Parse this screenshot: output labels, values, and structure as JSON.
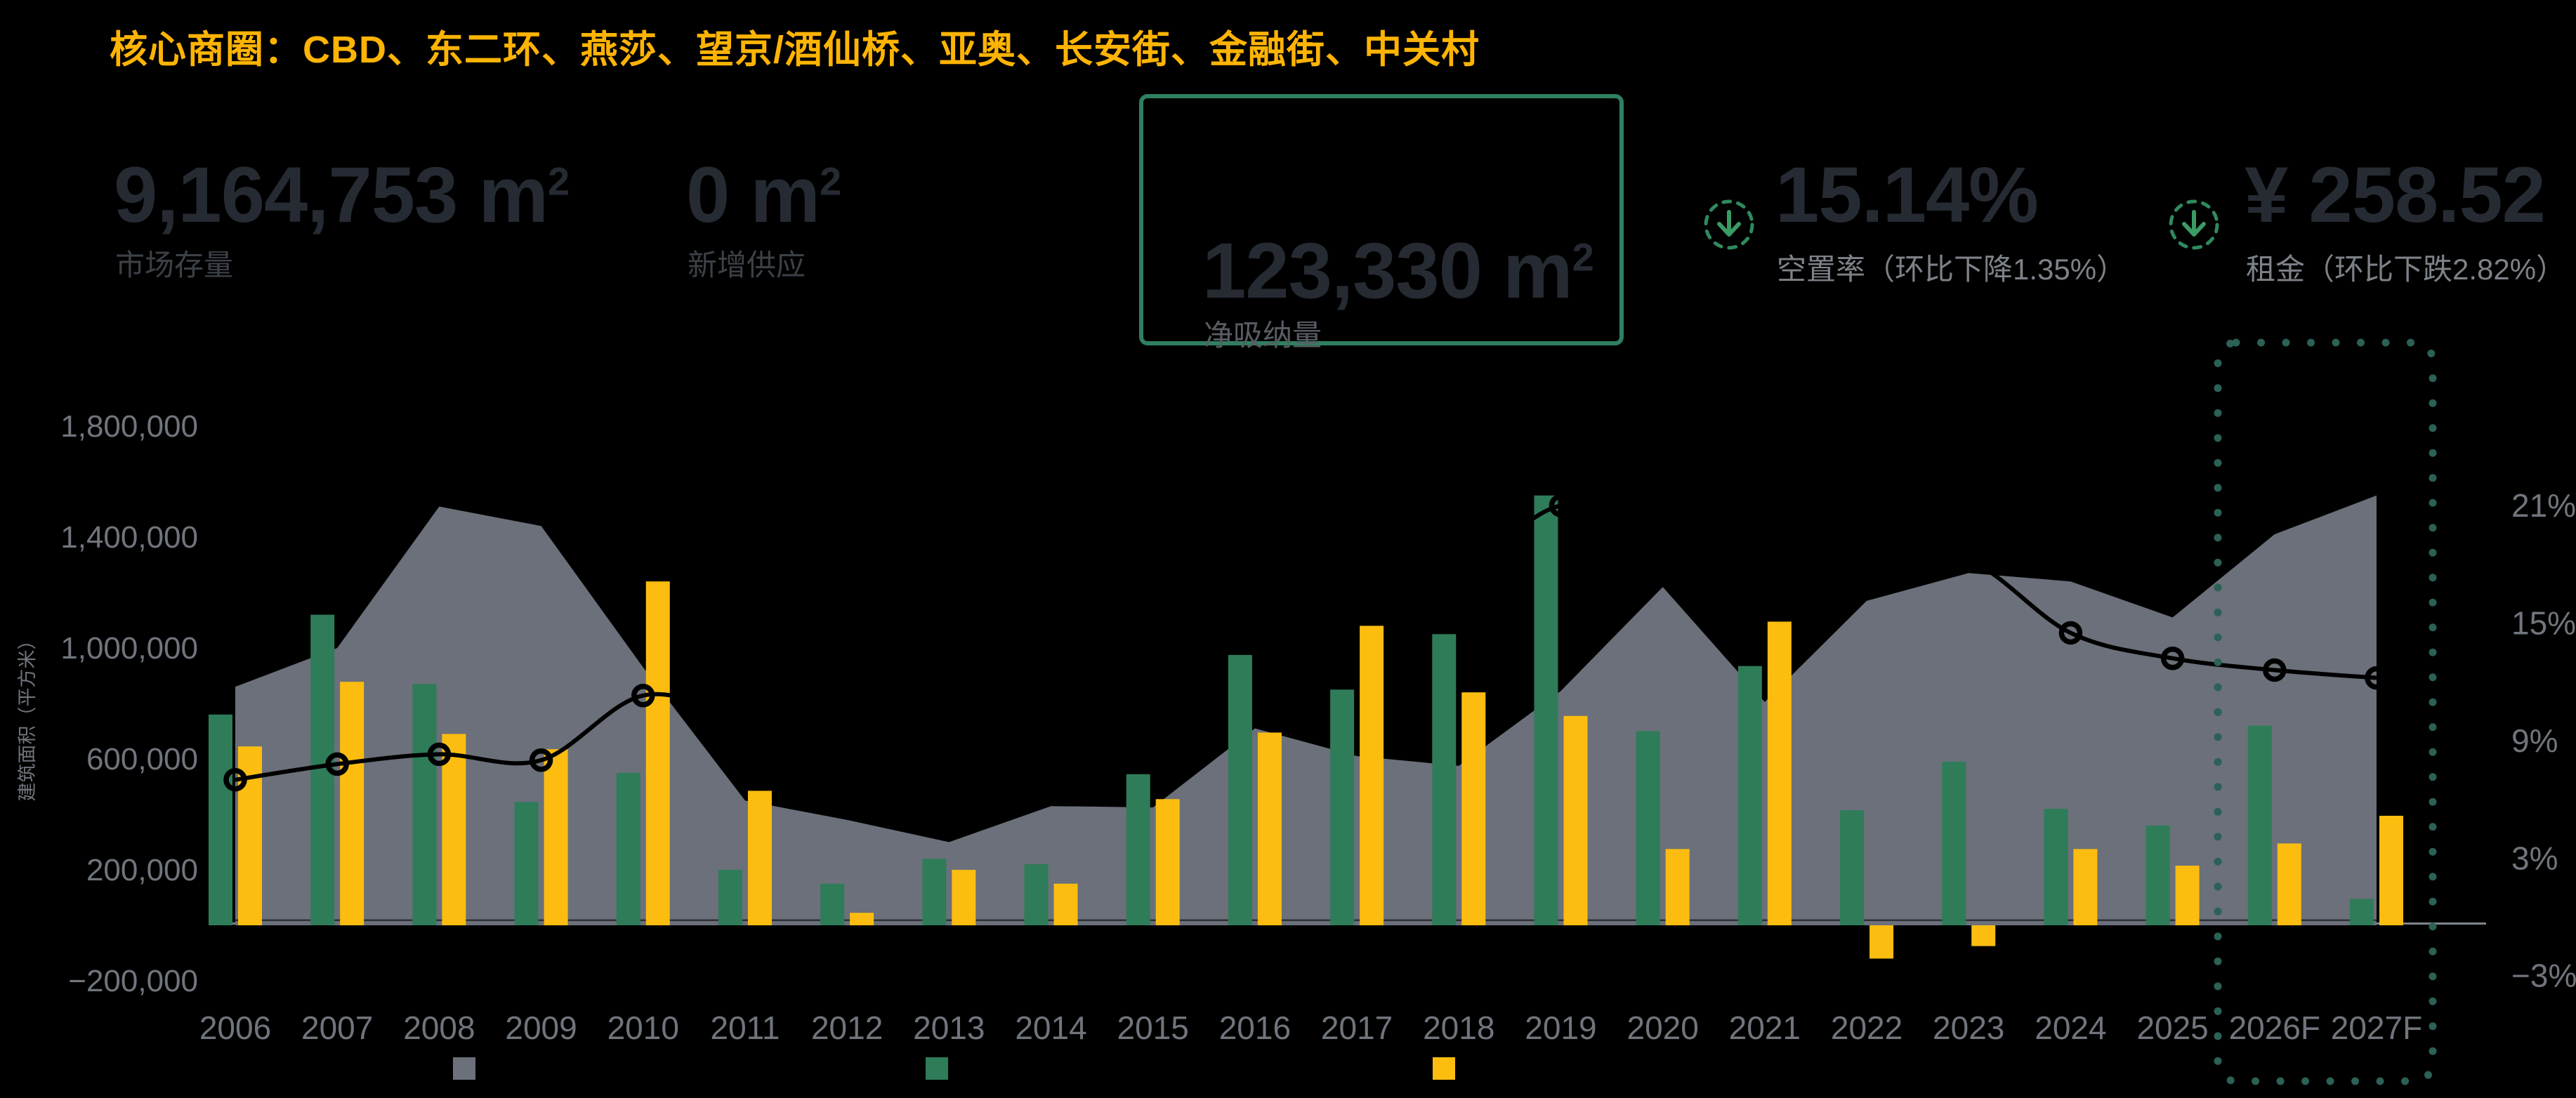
{
  "title": "核心商圈：CBD、东二环、燕莎、望京/酒仙桥、亚奥、长安街、金融街、中关村",
  "kpis": [
    {
      "value": "9,164,753",
      "unit_base": "m",
      "unit_sup": "2",
      "label": "市场存量"
    },
    {
      "value": "0",
      "unit_base": "m",
      "unit_sup": "2",
      "label": "新增供应"
    },
    {
      "value": "123,330",
      "unit_base": "m",
      "unit_sup": "2",
      "label": "净吸纳量",
      "highlighted": true
    },
    {
      "value": "15.14%",
      "label": "空置率（环比下降1.35%）",
      "trend_icon": "arrow-down-circle"
    },
    {
      "value": "¥ 258.52",
      "label": "租金（环比下跌2.82%）",
      "trend_icon": "arrow-down-circle"
    }
  ],
  "chart_data": {
    "type": "combo",
    "categories": [
      "2006",
      "2007",
      "2008",
      "2009",
      "2010",
      "2011",
      "2012",
      "2013",
      "2014",
      "2015",
      "2016",
      "2017",
      "2018",
      "2019",
      "2020",
      "2021",
      "2022",
      "2023",
      "2024",
      "2025",
      "2026F",
      "2027F"
    ],
    "series": [
      {
        "name": "gray-area",
        "type": "area",
        "axis": "left",
        "color": "#6b707a",
        "values": [
          860000,
          1000000,
          1510000,
          1440000,
          930000,
          450000,
          380000,
          300000,
          430000,
          425000,
          710000,
          610000,
          575000,
          845000,
          1220000,
          805000,
          1170000,
          1270000,
          1240000,
          1110000,
          1410000,
          1550000
        ]
      },
      {
        "name": "green-bars",
        "type": "bar",
        "axis": "left",
        "color": "#2f7c59",
        "values": [
          760000,
          1120000,
          870000,
          445000,
          550000,
          200000,
          150000,
          240000,
          220000,
          545000,
          975000,
          850000,
          1050000,
          1550000,
          700000,
          935000,
          415000,
          590000,
          420000,
          360000,
          720000,
          95000
        ]
      },
      {
        "name": "yellow-bars",
        "type": "bar",
        "axis": "left",
        "color": "#fdbd10",
        "values": [
          645000,
          878000,
          690000,
          635000,
          1240000,
          485000,
          45000,
          200000,
          150000,
          455000,
          695000,
          1080000,
          840000,
          755000,
          275000,
          1095000,
          -120000,
          -75000,
          275000,
          215000,
          295000,
          395000
        ]
      },
      {
        "name": "black-line",
        "type": "line",
        "axis": "right",
        "color": "#000000",
        "values": [
          7.0,
          7.8,
          8.3,
          8.0,
          11.3,
          10.2,
          9.6,
          9.3,
          9.8,
          11.0,
          14.5,
          16.0,
          17.5,
          21.0,
          19.8,
          19.0,
          18.4,
          18.2,
          14.5,
          13.2,
          12.6,
          12.2
        ]
      }
    ],
    "left_axis": {
      "title": "建筑面积（平方米）",
      "tick_labels": [
        "1,800,000",
        "1,400,000",
        "1,000,000",
        "600,000",
        "200,000",
        "−200,000"
      ],
      "tick_values": [
        1800000,
        1400000,
        1000000,
        600000,
        200000,
        -200000
      ],
      "range": [
        -200000,
        1800000
      ]
    },
    "right_axis": {
      "tick_labels": [
        "21%",
        "15%",
        "9%",
        "3%",
        "−3%"
      ],
      "tick_values": [
        21,
        15,
        9,
        3,
        -3
      ],
      "range": [
        -3,
        21
      ]
    },
    "x_axis": {
      "labels": [
        "2006",
        "2007",
        "2008",
        "2009",
        "2010",
        "2011",
        "2012",
        "2013",
        "2014",
        "2015",
        "2016",
        "2017",
        "2018",
        "2019",
        "2020",
        "2021",
        "2022",
        "2023",
        "2024",
        "2025",
        "2026F",
        "2027F"
      ]
    },
    "legend": [
      {
        "name": "gray-area-swatch",
        "color": "#6b707a",
        "label": ""
      },
      {
        "name": "green-bar-swatch",
        "color": "#2f7c59",
        "label": ""
      },
      {
        "name": "yellow-bar-swatch",
        "color": "#fdbd10",
        "label": ""
      }
    ],
    "forecast_highlight": {
      "categories": [
        "2026F",
        "2027F"
      ],
      "style": "dotted-box",
      "color": "#2b6156"
    },
    "grid": false,
    "legend_position": "bottom"
  },
  "colors": {
    "background": "#000000",
    "title": "#ffb404",
    "kpi_number": "#262b33",
    "kpi_box_border": "#2f8060",
    "icon_green": "#3a9b64",
    "axis_text": "#70757d",
    "axis_line": "#7f858e",
    "forecast_dots": "#2b6156"
  }
}
